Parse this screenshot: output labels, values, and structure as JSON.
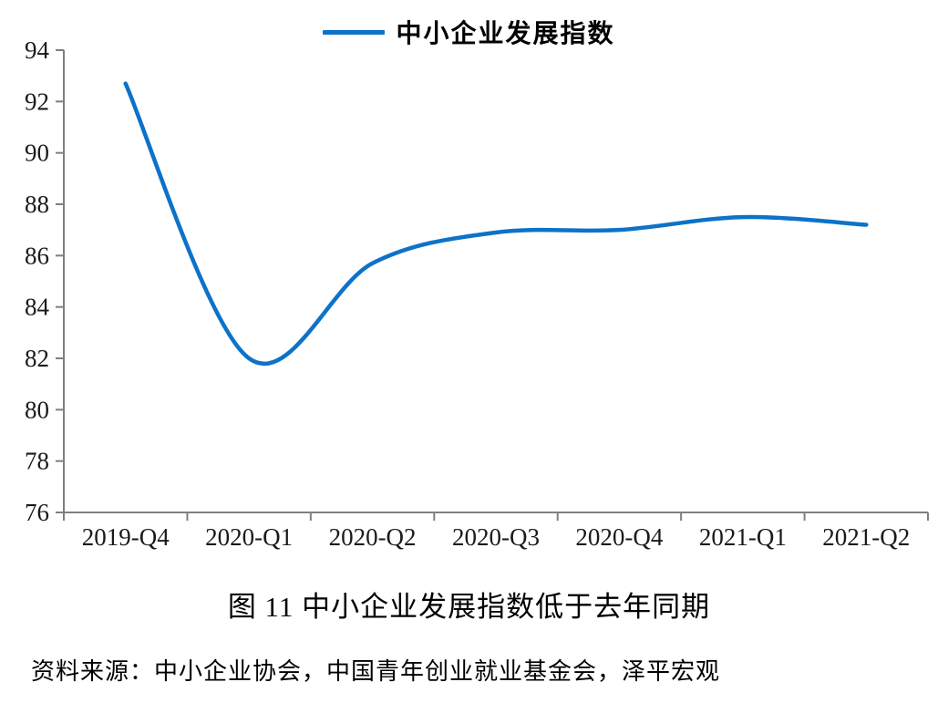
{
  "legend": {
    "label": "中小企业发展指数",
    "line_color": "#0d72c8"
  },
  "chart_data": {
    "type": "line",
    "title": "中小企业发展指数",
    "x": [
      "2019-Q4",
      "2020-Q1",
      "2020-Q2",
      "2020-Q3",
      "2020-Q4",
      "2021-Q1",
      "2021-Q2"
    ],
    "series": [
      {
        "name": "中小企业发展指数",
        "values": [
          92.7,
          82.0,
          85.7,
          86.9,
          87.0,
          87.5,
          87.2
        ],
        "color": "#0d72c8",
        "smooth": true
      }
    ],
    "ylim": [
      76,
      94
    ],
    "yticks": [
      76,
      78,
      80,
      82,
      84,
      86,
      88,
      90,
      92,
      94
    ],
    "xlabel": "",
    "ylabel": "",
    "grid": false,
    "legend_position": "top",
    "axis_color": "#7f7f7f"
  },
  "caption": {
    "text": "图 11  中小企业发展指数低于去年同期"
  },
  "source": {
    "text": "资料来源：中小企业协会，中国青年创业就业基金会，泽平宏观"
  }
}
